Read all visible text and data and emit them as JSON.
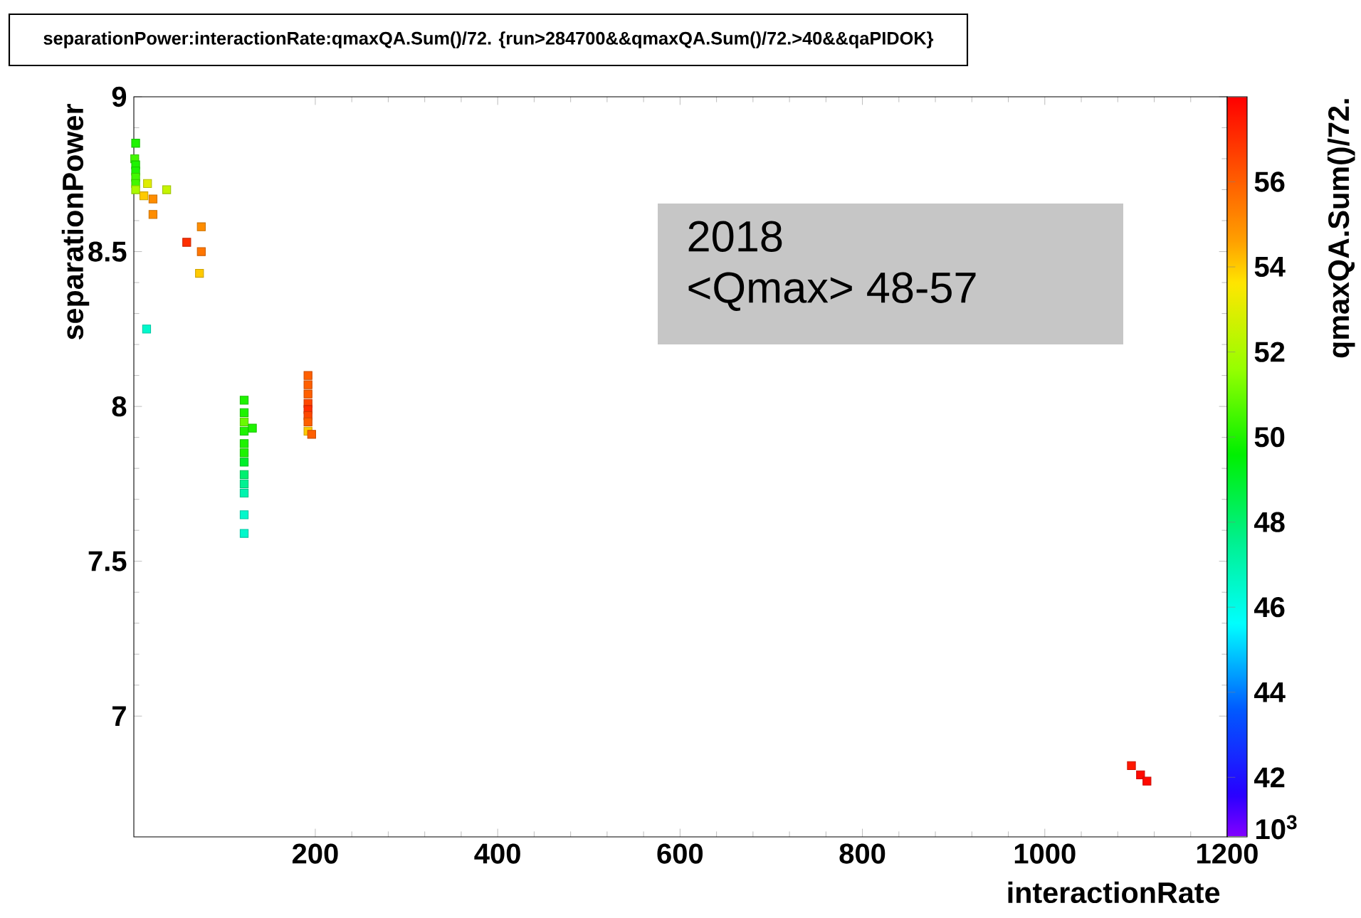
{
  "chart_data": {
    "type": "scatter",
    "title": "separationPower:interactionRate:qmaxQA.Sum()/72. {run>284700&&qmaxQA.Sum()/72.>40&&qaPIDOK}",
    "xlabel": "interactionRate",
    "ylabel": "separationPower",
    "clabel": "qmaxQA.Sum()/72.",
    "annotations": [
      "2018",
      "<Qmax> 48-57",
      "10$^{3}$"
    ],
    "xlim": [
      1,
      1200
    ],
    "xticks": [
      200,
      400,
      600,
      800,
      1000,
      1200
    ],
    "ylim": [
      6.61,
      9
    ],
    "yticks": [
      7,
      7.5,
      8,
      8.5,
      9
    ],
    "clim": [
      40.6,
      58
    ],
    "cticks": [
      42,
      44,
      46,
      48,
      50,
      52,
      54,
      56
    ],
    "marker": "square",
    "grid": false,
    "x": [
      3,
      2,
      3,
      3,
      3,
      3,
      3,
      16,
      12,
      22,
      37,
      22,
      75,
      59,
      75,
      73,
      15,
      122,
      122,
      122,
      122,
      122,
      122,
      122,
      122,
      122,
      122,
      122,
      122,
      131,
      192,
      192,
      192,
      192,
      192,
      192,
      192,
      192,
      196,
      1095,
      1105,
      1112
    ],
    "values": [
      8.85,
      8.8,
      8.78,
      8.76,
      8.74,
      8.72,
      8.7,
      8.72,
      8.68,
      8.67,
      8.7,
      8.62,
      8.58,
      8.53,
      8.5,
      8.43,
      8.25,
      8.02,
      7.98,
      7.95,
      7.92,
      7.88,
      7.85,
      7.82,
      7.78,
      7.75,
      7.72,
      7.65,
      7.59,
      7.93,
      8.1,
      8.07,
      8.04,
      8.01,
      7.99,
      7.97,
      7.95,
      7.92,
      7.91,
      6.84,
      6.81,
      6.79
    ],
    "cvalues": [
      50,
      50.5,
      50,
      50,
      50.5,
      50.5,
      52,
      53,
      54,
      55,
      52.5,
      55,
      55,
      57,
      55.5,
      54,
      46.5,
      50,
      50,
      51,
      50,
      50,
      50,
      49,
      48,
      47.5,
      47,
      46.5,
      46.5,
      50,
      56,
      56,
      56,
      56.5,
      57,
      56.5,
      56,
      54,
      56,
      57.5,
      57.8,
      57.8
    ]
  }
}
